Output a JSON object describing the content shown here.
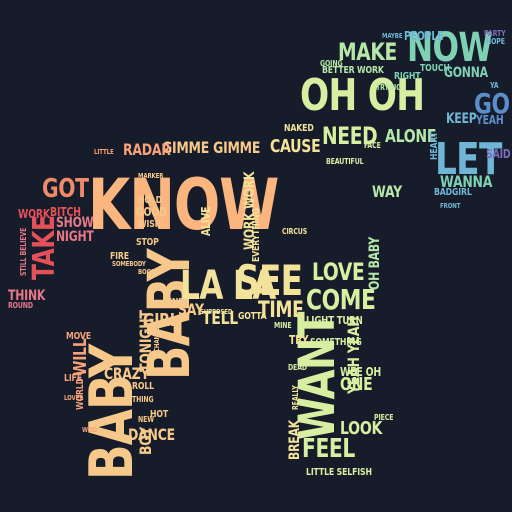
{
  "title": "",
  "palette": {
    "background": "#161c29",
    "orange": "#fbb57e",
    "peach": "#f6a27a",
    "yellow": "#f3e39a",
    "lightgreen": "#d8efa2",
    "mint": "#b6e7a8",
    "teal": "#7fd1b4",
    "sky": "#6fb6d6",
    "blue": "#5c8ecb",
    "purple": "#7d6bbd",
    "red": "#e5505a",
    "pink": "#e6788a",
    "coral": "#f08a6a"
  },
  "words": [
    {
      "text": "KNOW",
      "color": "#fbb57e"
    },
    {
      "text": "BABY",
      "color": "#f6c98a"
    },
    {
      "text": "BABY",
      "color": "#f6c98a"
    },
    {
      "text": "OH OH",
      "color": "#d8efa2"
    },
    {
      "text": "NOW",
      "color": "#7fd1b4"
    },
    {
      "text": "MAKE",
      "color": "#b6e7a8"
    },
    {
      "text": "LET",
      "color": "#6fb6d6"
    },
    {
      "text": "GO",
      "color": "#5c8ecb"
    },
    {
      "text": "WANT",
      "color": "#d8efa2"
    },
    {
      "text": "SEE",
      "color": "#f3e39a"
    },
    {
      "text": "LOVE",
      "color": "#d8efa2"
    },
    {
      "text": "COME",
      "color": "#d8efa2"
    },
    {
      "text": "LA LA",
      "color": "#f3e39a"
    },
    {
      "text": "TAKE",
      "color": "#e5505a"
    },
    {
      "text": "GOT",
      "color": "#f08a6a"
    },
    {
      "text": "NEED",
      "color": "#d8efa2"
    },
    {
      "text": "ALONE",
      "color": "#b6e7a8"
    },
    {
      "text": "CAUSE",
      "color": "#f3e39a"
    },
    {
      "text": "GIMME GIMME",
      "color": "#f6c98a"
    },
    {
      "text": "RADAR",
      "color": "#f6a27a"
    },
    {
      "text": "FEEL",
      "color": "#d8efa2"
    },
    {
      "text": "TIME",
      "color": "#f3e39a"
    },
    {
      "text": "TELL",
      "color": "#f3e39a"
    },
    {
      "text": "SAY",
      "color": "#f6c98a"
    },
    {
      "text": "GIRL",
      "color": "#f6c98a"
    },
    {
      "text": "TONIGHT",
      "color": "#f6c98a"
    },
    {
      "text": "CRAZY",
      "color": "#f6c98a"
    },
    {
      "text": "BOY",
      "color": "#f6c98a"
    },
    {
      "text": "DANCE",
      "color": "#f6c98a"
    },
    {
      "text": "WILL",
      "color": "#f6a27a"
    },
    {
      "text": "WAY",
      "color": "#b6e7a8"
    },
    {
      "text": "WANNA",
      "color": "#7fd1b4"
    },
    {
      "text": "KEEP",
      "color": "#6fb6d6"
    },
    {
      "text": "GONNA",
      "color": "#7fd1b4"
    },
    {
      "text": "PEOPLE",
      "color": "#6fb6d6"
    },
    {
      "text": "SHOW",
      "color": "#e6788a"
    },
    {
      "text": "NIGHT",
      "color": "#e6788a"
    },
    {
      "text": "WORK",
      "color": "#e5505a"
    },
    {
      "text": "BITCH",
      "color": "#e5505a"
    },
    {
      "text": "THINK",
      "color": "#e6788a"
    },
    {
      "text": "ONE",
      "color": "#d8efa2"
    },
    {
      "text": "LOOK",
      "color": "#d8efa2"
    },
    {
      "text": "YEAH YEAH",
      "color": "#d8efa2"
    },
    {
      "text": "OH BABY",
      "color": "#b6e7a8"
    },
    {
      "text": "TRY",
      "color": "#f3e39a"
    },
    {
      "text": "WORK WORK",
      "color": "#f3e39a"
    },
    {
      "text": "LIGHT TURN",
      "color": "#d8efa2"
    },
    {
      "text": "SOMETHING",
      "color": "#d8efa2"
    },
    {
      "text": "LITTLE SELFISH",
      "color": "#d8efa2"
    },
    {
      "text": "BREAK",
      "color": "#f3e39a"
    },
    {
      "text": "WEE OH",
      "color": "#d8efa2"
    },
    {
      "text": "BETTER WORK",
      "color": "#b6e7a8"
    },
    {
      "text": "RIGHT",
      "color": "#7fd1b4"
    },
    {
      "text": "BADGIRL",
      "color": "#6fb6d6"
    },
    {
      "text": "YEAH",
      "color": "#5c8ecb"
    },
    {
      "text": "SAID",
      "color": "#7d6bbd"
    },
    {
      "text": "GOOD",
      "color": "#f6c98a"
    },
    {
      "text": "STOP",
      "color": "#f6c98a"
    },
    {
      "text": "HOLD",
      "color": "#f6c98a"
    },
    {
      "text": "WISH",
      "color": "#f6c98a"
    },
    {
      "text": "FIND",
      "color": "#f6c98a"
    },
    {
      "text": "MOVE",
      "color": "#f6a27a"
    },
    {
      "text": "LIFE",
      "color": "#f6a27a"
    },
    {
      "text": "ROLL",
      "color": "#f6c98a"
    },
    {
      "text": "FIRE",
      "color": "#f6c98a"
    },
    {
      "text": "ALIVE",
      "color": "#f3e39a"
    },
    {
      "text": "NAKED",
      "color": "#f3e39a"
    },
    {
      "text": "EVERYTHING",
      "color": "#f3e39a"
    },
    {
      "text": "GOTTA",
      "color": "#f3e39a"
    },
    {
      "text": "TOUCH",
      "color": "#7fd1b4"
    },
    {
      "text": "HEART",
      "color": "#6fb6d6"
    },
    {
      "text": "HOPE",
      "color": "#6fb6d6"
    },
    {
      "text": "PARTY",
      "color": "#7d6bbd"
    },
    {
      "text": "GOING",
      "color": "#b6e7a8"
    },
    {
      "text": "MINE",
      "color": "#d8efa2"
    },
    {
      "text": "ROUND",
      "color": "#e6788a"
    },
    {
      "text": "STILL BELIEVE",
      "color": "#e6788a"
    },
    {
      "text": "MAYBE",
      "color": "#6fb6d6"
    },
    {
      "text": "FACE",
      "color": "#d8efa2"
    },
    {
      "text": "TRYING",
      "color": "#b6e7a8"
    },
    {
      "text": "WORLD",
      "color": "#f6a27a"
    },
    {
      "text": "HOT",
      "color": "#f6c98a"
    },
    {
      "text": "NEW",
      "color": "#f6c98a"
    },
    {
      "text": "YA",
      "color": "#6fb6d6"
    },
    {
      "text": "BEAUTIFUL",
      "color": "#d8efa2"
    },
    {
      "text": "REALLY",
      "color": "#f3e39a"
    },
    {
      "text": "LITTLE",
      "color": "#f6a27a"
    },
    {
      "text": "CIRCUS",
      "color": "#f3e39a"
    },
    {
      "text": "PIECE",
      "color": "#d8efa2"
    },
    {
      "text": "DEAD",
      "color": "#d8efa2"
    },
    {
      "text": "FRONT",
      "color": "#6fb6d6"
    },
    {
      "text": "MARKER",
      "color": "#f6c98a"
    },
    {
      "text": "THING",
      "color": "#f6c98a"
    },
    {
      "text": "WOO",
      "color": "#f6a27a"
    },
    {
      "text": "BOOM",
      "color": "#f6c98a"
    },
    {
      "text": "CHANCE",
      "color": "#f6c98a"
    },
    {
      "text": "SOMEBODY",
      "color": "#f6c98a"
    },
    {
      "text": "SUPPOSED",
      "color": "#f3e39a"
    },
    {
      "text": "LOVER",
      "color": "#f6a27a"
    }
  ]
}
